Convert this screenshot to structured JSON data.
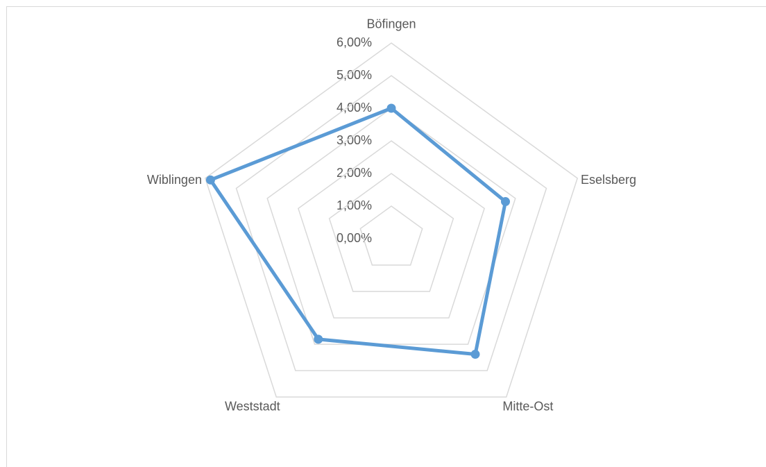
{
  "chart_data": {
    "type": "radar",
    "categories": [
      "Böfingen",
      "Eselsberg",
      "Mitte-Ost",
      "Weststadt",
      "Wiblingen"
    ],
    "series": [
      {
        "color": "#5b9bd5",
        "values": [
          4.0,
          3.68,
          4.38,
          3.81,
          5.83
        ]
      }
    ],
    "ylim": [
      0,
      6
    ],
    "yticks": [
      {
        "value": 0,
        "label": "0,00%"
      },
      {
        "value": 1,
        "label": "1,00%"
      },
      {
        "value": 2,
        "label": "2,00%"
      },
      {
        "value": 3,
        "label": "3,00%"
      },
      {
        "value": 4,
        "label": "4,00%"
      },
      {
        "value": 5,
        "label": "5,00%"
      },
      {
        "value": 6,
        "label": "6,00%"
      }
    ],
    "grid": true
  }
}
